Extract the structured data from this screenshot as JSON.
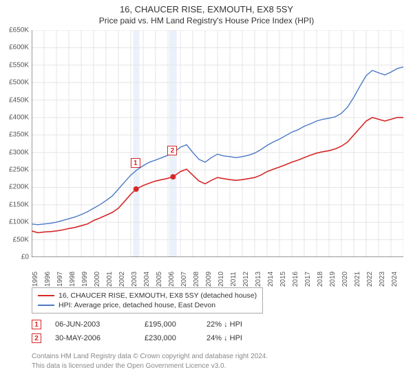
{
  "title": "16, CHAUCER RISE, EXMOUTH, EX8 5SY",
  "subtitle": "Price paid vs. HM Land Registry's House Price Index (HPI)",
  "chart": {
    "type": "line",
    "background_color": "#ffffff",
    "grid_color": "#e5e5e5",
    "axis_color": "#333333",
    "xlim": [
      1995,
      2025
    ],
    "ylim": [
      0,
      650000
    ],
    "ytick_step": 50000,
    "y_labels": [
      "£0",
      "£50K",
      "£100K",
      "£150K",
      "£200K",
      "£250K",
      "£300K",
      "£350K",
      "£400K",
      "£450K",
      "£500K",
      "£550K",
      "£600K",
      "£650K"
    ],
    "x_labels": [
      "1995",
      "1996",
      "1997",
      "1998",
      "1999",
      "2000",
      "2001",
      "2002",
      "2003",
      "2004",
      "2005",
      "2006",
      "2007",
      "2008",
      "2009",
      "2010",
      "2011",
      "2012",
      "2013",
      "2014",
      "2015",
      "2016",
      "2017",
      "2018",
      "2019",
      "2020",
      "2021",
      "2022",
      "2023",
      "2024"
    ],
    "highlight_bands": [
      {
        "x_start": 2003.2,
        "x_end": 2003.7,
        "color": "#eaf1fb"
      },
      {
        "x_start": 2006.1,
        "x_end": 2006.7,
        "color": "#eaf1fb"
      }
    ],
    "series": [
      {
        "name": "property",
        "color": "#d62728",
        "line_width": 1.6,
        "points": [
          [
            1995,
            75000
          ],
          [
            1995.5,
            70000
          ],
          [
            1996,
            72000
          ],
          [
            1996.5,
            73000
          ],
          [
            1997,
            75000
          ],
          [
            1997.5,
            78000
          ],
          [
            1998,
            82000
          ],
          [
            1998.5,
            85000
          ],
          [
            1999,
            90000
          ],
          [
            1999.5,
            95000
          ],
          [
            2000,
            105000
          ],
          [
            2000.5,
            112000
          ],
          [
            2001,
            120000
          ],
          [
            2001.5,
            128000
          ],
          [
            2002,
            140000
          ],
          [
            2002.5,
            160000
          ],
          [
            2003,
            180000
          ],
          [
            2003.43,
            195000
          ],
          [
            2004,
            205000
          ],
          [
            2004.5,
            212000
          ],
          [
            2005,
            218000
          ],
          [
            2005.5,
            222000
          ],
          [
            2006,
            226000
          ],
          [
            2006.41,
            230000
          ],
          [
            2007,
            245000
          ],
          [
            2007.5,
            252000
          ],
          [
            2008,
            235000
          ],
          [
            2008.5,
            218000
          ],
          [
            2009,
            210000
          ],
          [
            2009.5,
            220000
          ],
          [
            2010,
            228000
          ],
          [
            2010.5,
            225000
          ],
          [
            2011,
            222000
          ],
          [
            2011.5,
            220000
          ],
          [
            2012,
            222000
          ],
          [
            2012.5,
            225000
          ],
          [
            2013,
            228000
          ],
          [
            2013.5,
            235000
          ],
          [
            2014,
            245000
          ],
          [
            2014.5,
            252000
          ],
          [
            2015,
            258000
          ],
          [
            2015.5,
            265000
          ],
          [
            2016,
            272000
          ],
          [
            2016.5,
            278000
          ],
          [
            2017,
            285000
          ],
          [
            2017.5,
            292000
          ],
          [
            2018,
            298000
          ],
          [
            2018.5,
            302000
          ],
          [
            2019,
            305000
          ],
          [
            2019.5,
            310000
          ],
          [
            2020,
            318000
          ],
          [
            2020.5,
            330000
          ],
          [
            2021,
            350000
          ],
          [
            2021.5,
            370000
          ],
          [
            2022,
            390000
          ],
          [
            2022.5,
            400000
          ],
          [
            2023,
            395000
          ],
          [
            2023.5,
            390000
          ],
          [
            2024,
            395000
          ],
          [
            2024.5,
            400000
          ],
          [
            2025,
            400000
          ]
        ]
      },
      {
        "name": "hpi",
        "color": "#4a78c4",
        "line_width": 1.4,
        "points": [
          [
            1995,
            95000
          ],
          [
            1995.5,
            93000
          ],
          [
            1996,
            95000
          ],
          [
            1996.5,
            97000
          ],
          [
            1997,
            100000
          ],
          [
            1997.5,
            105000
          ],
          [
            1998,
            110000
          ],
          [
            1998.5,
            115000
          ],
          [
            1999,
            122000
          ],
          [
            1999.5,
            130000
          ],
          [
            2000,
            140000
          ],
          [
            2000.5,
            150000
          ],
          [
            2001,
            162000
          ],
          [
            2001.5,
            175000
          ],
          [
            2002,
            195000
          ],
          [
            2002.5,
            215000
          ],
          [
            2003,
            235000
          ],
          [
            2003.5,
            250000
          ],
          [
            2004,
            262000
          ],
          [
            2004.5,
            272000
          ],
          [
            2005,
            278000
          ],
          [
            2005.5,
            285000
          ],
          [
            2006,
            292000
          ],
          [
            2006.5,
            300000
          ],
          [
            2007,
            315000
          ],
          [
            2007.5,
            322000
          ],
          [
            2008,
            300000
          ],
          [
            2008.5,
            280000
          ],
          [
            2009,
            272000
          ],
          [
            2009.5,
            285000
          ],
          [
            2010,
            295000
          ],
          [
            2010.5,
            290000
          ],
          [
            2011,
            288000
          ],
          [
            2011.5,
            285000
          ],
          [
            2012,
            288000
          ],
          [
            2012.5,
            292000
          ],
          [
            2013,
            298000
          ],
          [
            2013.5,
            308000
          ],
          [
            2014,
            320000
          ],
          [
            2014.5,
            330000
          ],
          [
            2015,
            338000
          ],
          [
            2015.5,
            348000
          ],
          [
            2016,
            358000
          ],
          [
            2016.5,
            365000
          ],
          [
            2017,
            375000
          ],
          [
            2017.5,
            382000
          ],
          [
            2018,
            390000
          ],
          [
            2018.5,
            395000
          ],
          [
            2019,
            398000
          ],
          [
            2019.5,
            402000
          ],
          [
            2020,
            412000
          ],
          [
            2020.5,
            430000
          ],
          [
            2021,
            458000
          ],
          [
            2021.5,
            490000
          ],
          [
            2022,
            520000
          ],
          [
            2022.5,
            535000
          ],
          [
            2023,
            528000
          ],
          [
            2023.5,
            522000
          ],
          [
            2024,
            530000
          ],
          [
            2024.5,
            540000
          ],
          [
            2025,
            545000
          ]
        ]
      }
    ],
    "sale_markers": [
      {
        "badge": "1",
        "x": 2003.43,
        "y": 195000,
        "badge_offset_y": -45
      },
      {
        "badge": "2",
        "x": 2006.41,
        "y": 230000,
        "badge_offset_y": -45
      }
    ],
    "marker_color": "#d62728",
    "marker_radius": 4
  },
  "legend": {
    "items": [
      {
        "label": "16, CHAUCER RISE, EXMOUTH, EX8 5SY (detached house)",
        "color": "#d62728"
      },
      {
        "label": "HPI: Average price, detached house, East Devon",
        "color": "#4a78c4"
      }
    ]
  },
  "sales": [
    {
      "badge": "1",
      "date": "06-JUN-2003",
      "price": "£195,000",
      "pct": "22% ↓ HPI"
    },
    {
      "badge": "2",
      "date": "30-MAY-2006",
      "price": "£230,000",
      "pct": "24% ↓ HPI"
    }
  ],
  "footer_line1": "Contains HM Land Registry data © Crown copyright and database right 2024.",
  "footer_line2": "This data is licensed under the Open Government Licence v3.0."
}
